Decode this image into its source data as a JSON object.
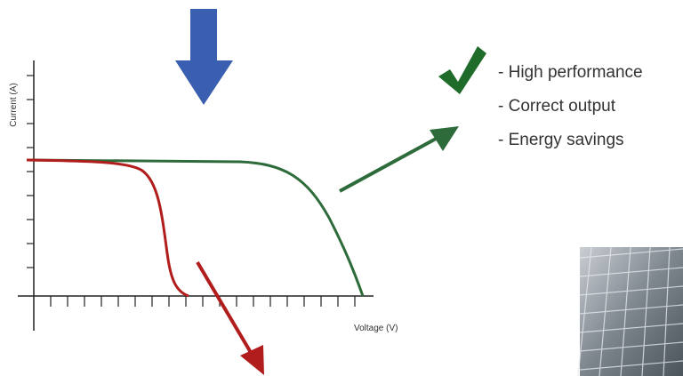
{
  "axes": {
    "y_label": "Current (A)",
    "x_label": "Voltage (V)"
  },
  "benefits": [
    "- High performance",
    "- Correct output",
    "- Energy savings"
  ]
}
